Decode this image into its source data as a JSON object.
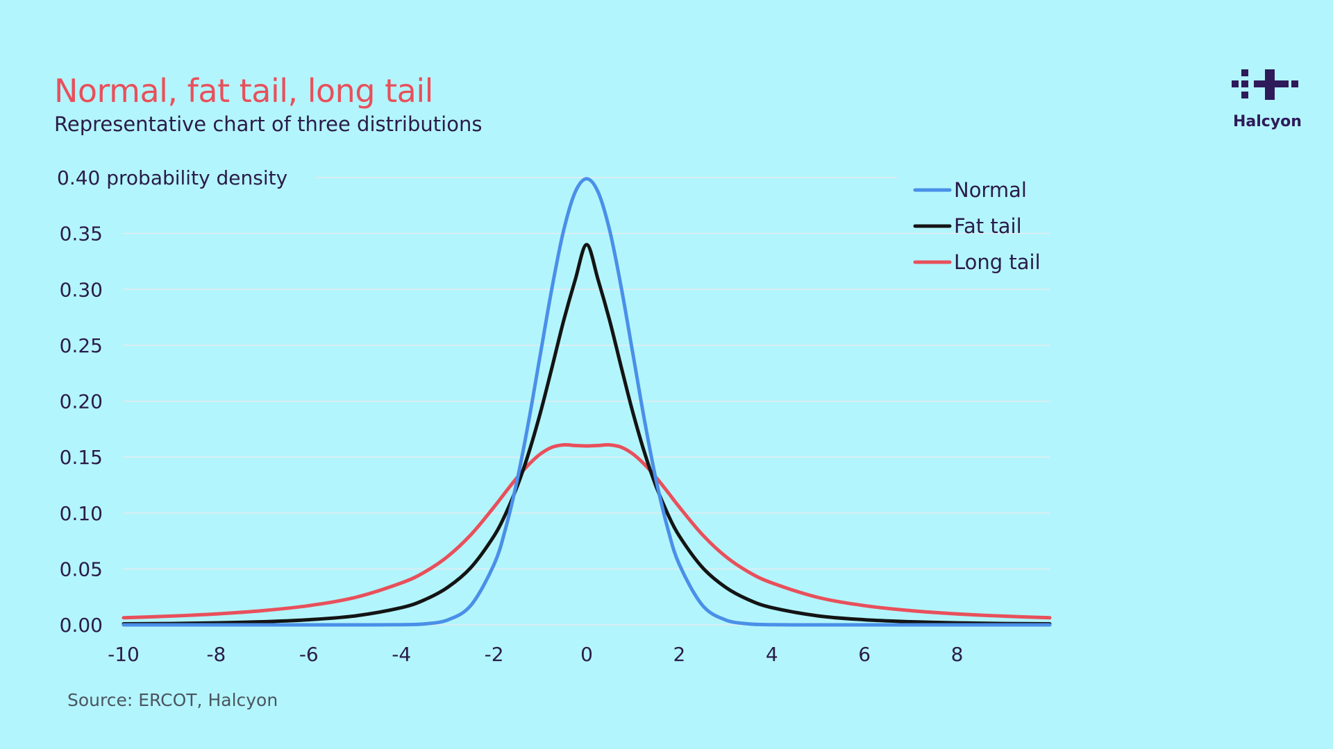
{
  "header": {
    "title": "Normal, fat tail, long tail",
    "subtitle": "Representative chart of three distributions"
  },
  "brand": {
    "name": "Halcyon",
    "color": "#2f1a5a"
  },
  "footer": {
    "source": "Source: ERCOT, Halcyon"
  },
  "colors": {
    "background": "#b3f5fc",
    "title": "#e8505b",
    "text": "#2a1b4a",
    "grid": "#e4ecf0"
  },
  "chart_data": {
    "type": "line",
    "title": "Normal, fat tail, long tail",
    "subtitle": "Representative chart of three distributions",
    "ylabel": "probability density",
    "xlabel": "",
    "xlim": [
      -10,
      10
    ],
    "ylim": [
      0,
      0.4
    ],
    "x_ticks": [
      -10,
      -8,
      -6,
      -4,
      -2,
      0,
      2,
      4,
      6,
      8
    ],
    "x_tick_labels": [
      "-10",
      "-8",
      "-6",
      "-4",
      "-2",
      "0",
      "2",
      "4",
      "6",
      "8"
    ],
    "y_ticks": [
      0,
      0.05,
      0.1,
      0.15,
      0.2,
      0.25,
      0.3,
      0.35,
      0.4
    ],
    "y_tick_labels": [
      "0.00",
      "0.05",
      "0.10",
      "0.15",
      "0.20",
      "0.25",
      "0.30",
      "0.35",
      "0.40"
    ],
    "top_tick_label": "0.40 probability density",
    "grid": true,
    "legend_position": "top-right",
    "x": [
      -10,
      -9,
      -8,
      -7,
      -6,
      -5,
      -4,
      -3.5,
      -3,
      -2.5,
      -2,
      -1.75,
      -1.5,
      -1.25,
      -1,
      -0.75,
      -0.5,
      -0.25,
      0,
      0.25,
      0.5,
      0.75,
      1,
      1.25,
      1.5,
      1.75,
      2,
      2.5,
      3,
      3.5,
      4,
      5,
      6,
      7,
      8,
      9,
      10
    ],
    "series": [
      {
        "name": "Normal",
        "color": "#4a8fe8",
        "values": [
          0,
          0,
          0,
          0,
          0,
          1.5e-06,
          0.000134,
          0.000873,
          0.00443,
          0.0175,
          0.054,
          0.0863,
          0.1295,
          0.1826,
          0.242,
          0.3011,
          0.3521,
          0.3867,
          0.3989,
          0.3867,
          0.3521,
          0.3011,
          0.242,
          0.1826,
          0.1295,
          0.0863,
          0.054,
          0.0175,
          0.00443,
          0.000873,
          0.000134,
          1.5e-06,
          0,
          0,
          0,
          0,
          0
        ]
      },
      {
        "name": "Fat tail",
        "color": "#141414",
        "values": [
          0.0009,
          0.0012,
          0.0018,
          0.0028,
          0.0046,
          0.008,
          0.0154,
          0.0224,
          0.0336,
          0.0513,
          0.0795,
          0.0993,
          0.1238,
          0.1539,
          0.1896,
          0.23,
          0.2715,
          0.3081,
          0.34,
          0.3081,
          0.2715,
          0.23,
          0.1896,
          0.1539,
          0.1238,
          0.0993,
          0.0795,
          0.0513,
          0.0336,
          0.0224,
          0.0154,
          0.008,
          0.0046,
          0.0028,
          0.0018,
          0.0012,
          0.0009
        ]
      },
      {
        "name": "Long tail",
        "color": "#e8505b",
        "values": [
          0.0063,
          0.0078,
          0.0098,
          0.0127,
          0.0172,
          0.0245,
          0.0375,
          0.0472,
          0.0612,
          0.0806,
          0.1054,
          0.1188,
          0.1318,
          0.1434,
          0.1528,
          0.1588,
          0.1609,
          0.1604,
          0.16,
          0.1604,
          0.1609,
          0.1588,
          0.1528,
          0.1434,
          0.1318,
          0.1188,
          0.1054,
          0.0806,
          0.0612,
          0.0472,
          0.0375,
          0.0245,
          0.0172,
          0.0127,
          0.0098,
          0.0078,
          0.0063
        ]
      }
    ]
  }
}
